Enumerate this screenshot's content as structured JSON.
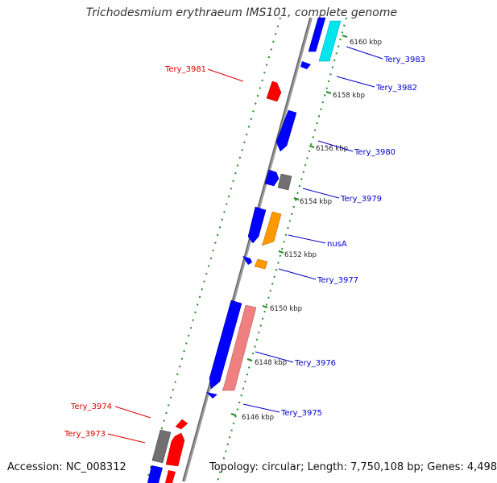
{
  "title": "Trichodesmium erythraeum IMS101, complete genome",
  "accession": "Accession: NC_008312",
  "summary": "Topology: circular; Length: 7,750,108 bp; Genes: 4,498",
  "colors": {
    "backbone": "#888888",
    "ticks": "#228B22",
    "label_forward": "#0000CC",
    "label_reverse": "#DD0000",
    "cds_blue": "#0000FF",
    "cds_red": "#FF0000",
    "cds_gray": "#707070",
    "cds_orange": "#FF9900",
    "cds_cyan": "#00E5EE",
    "cds_pink": "#EE8080"
  },
  "scale_labels": [
    "6160 kbp",
    "6158 kbp",
    "6156 kbp",
    "6154 kbp",
    "6152 kbp",
    "6150 kbp",
    "6148 kbp",
    "6146 kbp"
  ],
  "gene_labels": [
    {
      "text": "Tery_3983",
      "strand": "forward"
    },
    {
      "text": "Tery_3982",
      "strand": "forward"
    },
    {
      "text": "Tery_3981",
      "strand": "reverse"
    },
    {
      "text": "Tery_3980",
      "strand": "forward"
    },
    {
      "text": "Tery_3979",
      "strand": "forward"
    },
    {
      "text": "nusA",
      "strand": "forward"
    },
    {
      "text": "Tery_3977",
      "strand": "forward"
    },
    {
      "text": "Tery_3976",
      "strand": "forward"
    },
    {
      "text": "Tery_3975",
      "strand": "forward"
    },
    {
      "text": "Tery_3974",
      "strand": "reverse"
    },
    {
      "text": "Tery_3973",
      "strand": "reverse"
    }
  ],
  "features": [
    {
      "strand": "forward",
      "color": "cds_cyan"
    },
    {
      "strand": "forward",
      "color": "cds_blue"
    },
    {
      "strand": "forward",
      "color": "cds_blue"
    },
    {
      "strand": "reverse",
      "color": "cds_red"
    },
    {
      "strand": "forward",
      "color": "cds_blue"
    },
    {
      "strand": "forward",
      "color": "cds_blue"
    },
    {
      "strand": "forward",
      "color": "cds_gray"
    },
    {
      "strand": "forward",
      "color": "cds_blue"
    },
    {
      "strand": "forward",
      "color": "cds_orange"
    },
    {
      "strand": "forward",
      "color": "cds_blue"
    },
    {
      "strand": "forward",
      "color": "cds_orange"
    },
    {
      "strand": "forward",
      "color": "cds_blue"
    },
    {
      "strand": "forward",
      "color": "cds_pink"
    },
    {
      "strand": "forward",
      "color": "cds_blue"
    },
    {
      "strand": "reverse",
      "color": "cds_red"
    },
    {
      "strand": "reverse",
      "color": "cds_red"
    },
    {
      "strand": "reverse",
      "color": "cds_gray"
    },
    {
      "strand": "reverse",
      "color": "cds_red"
    },
    {
      "strand": "forward",
      "color": "cds_blue"
    }
  ]
}
